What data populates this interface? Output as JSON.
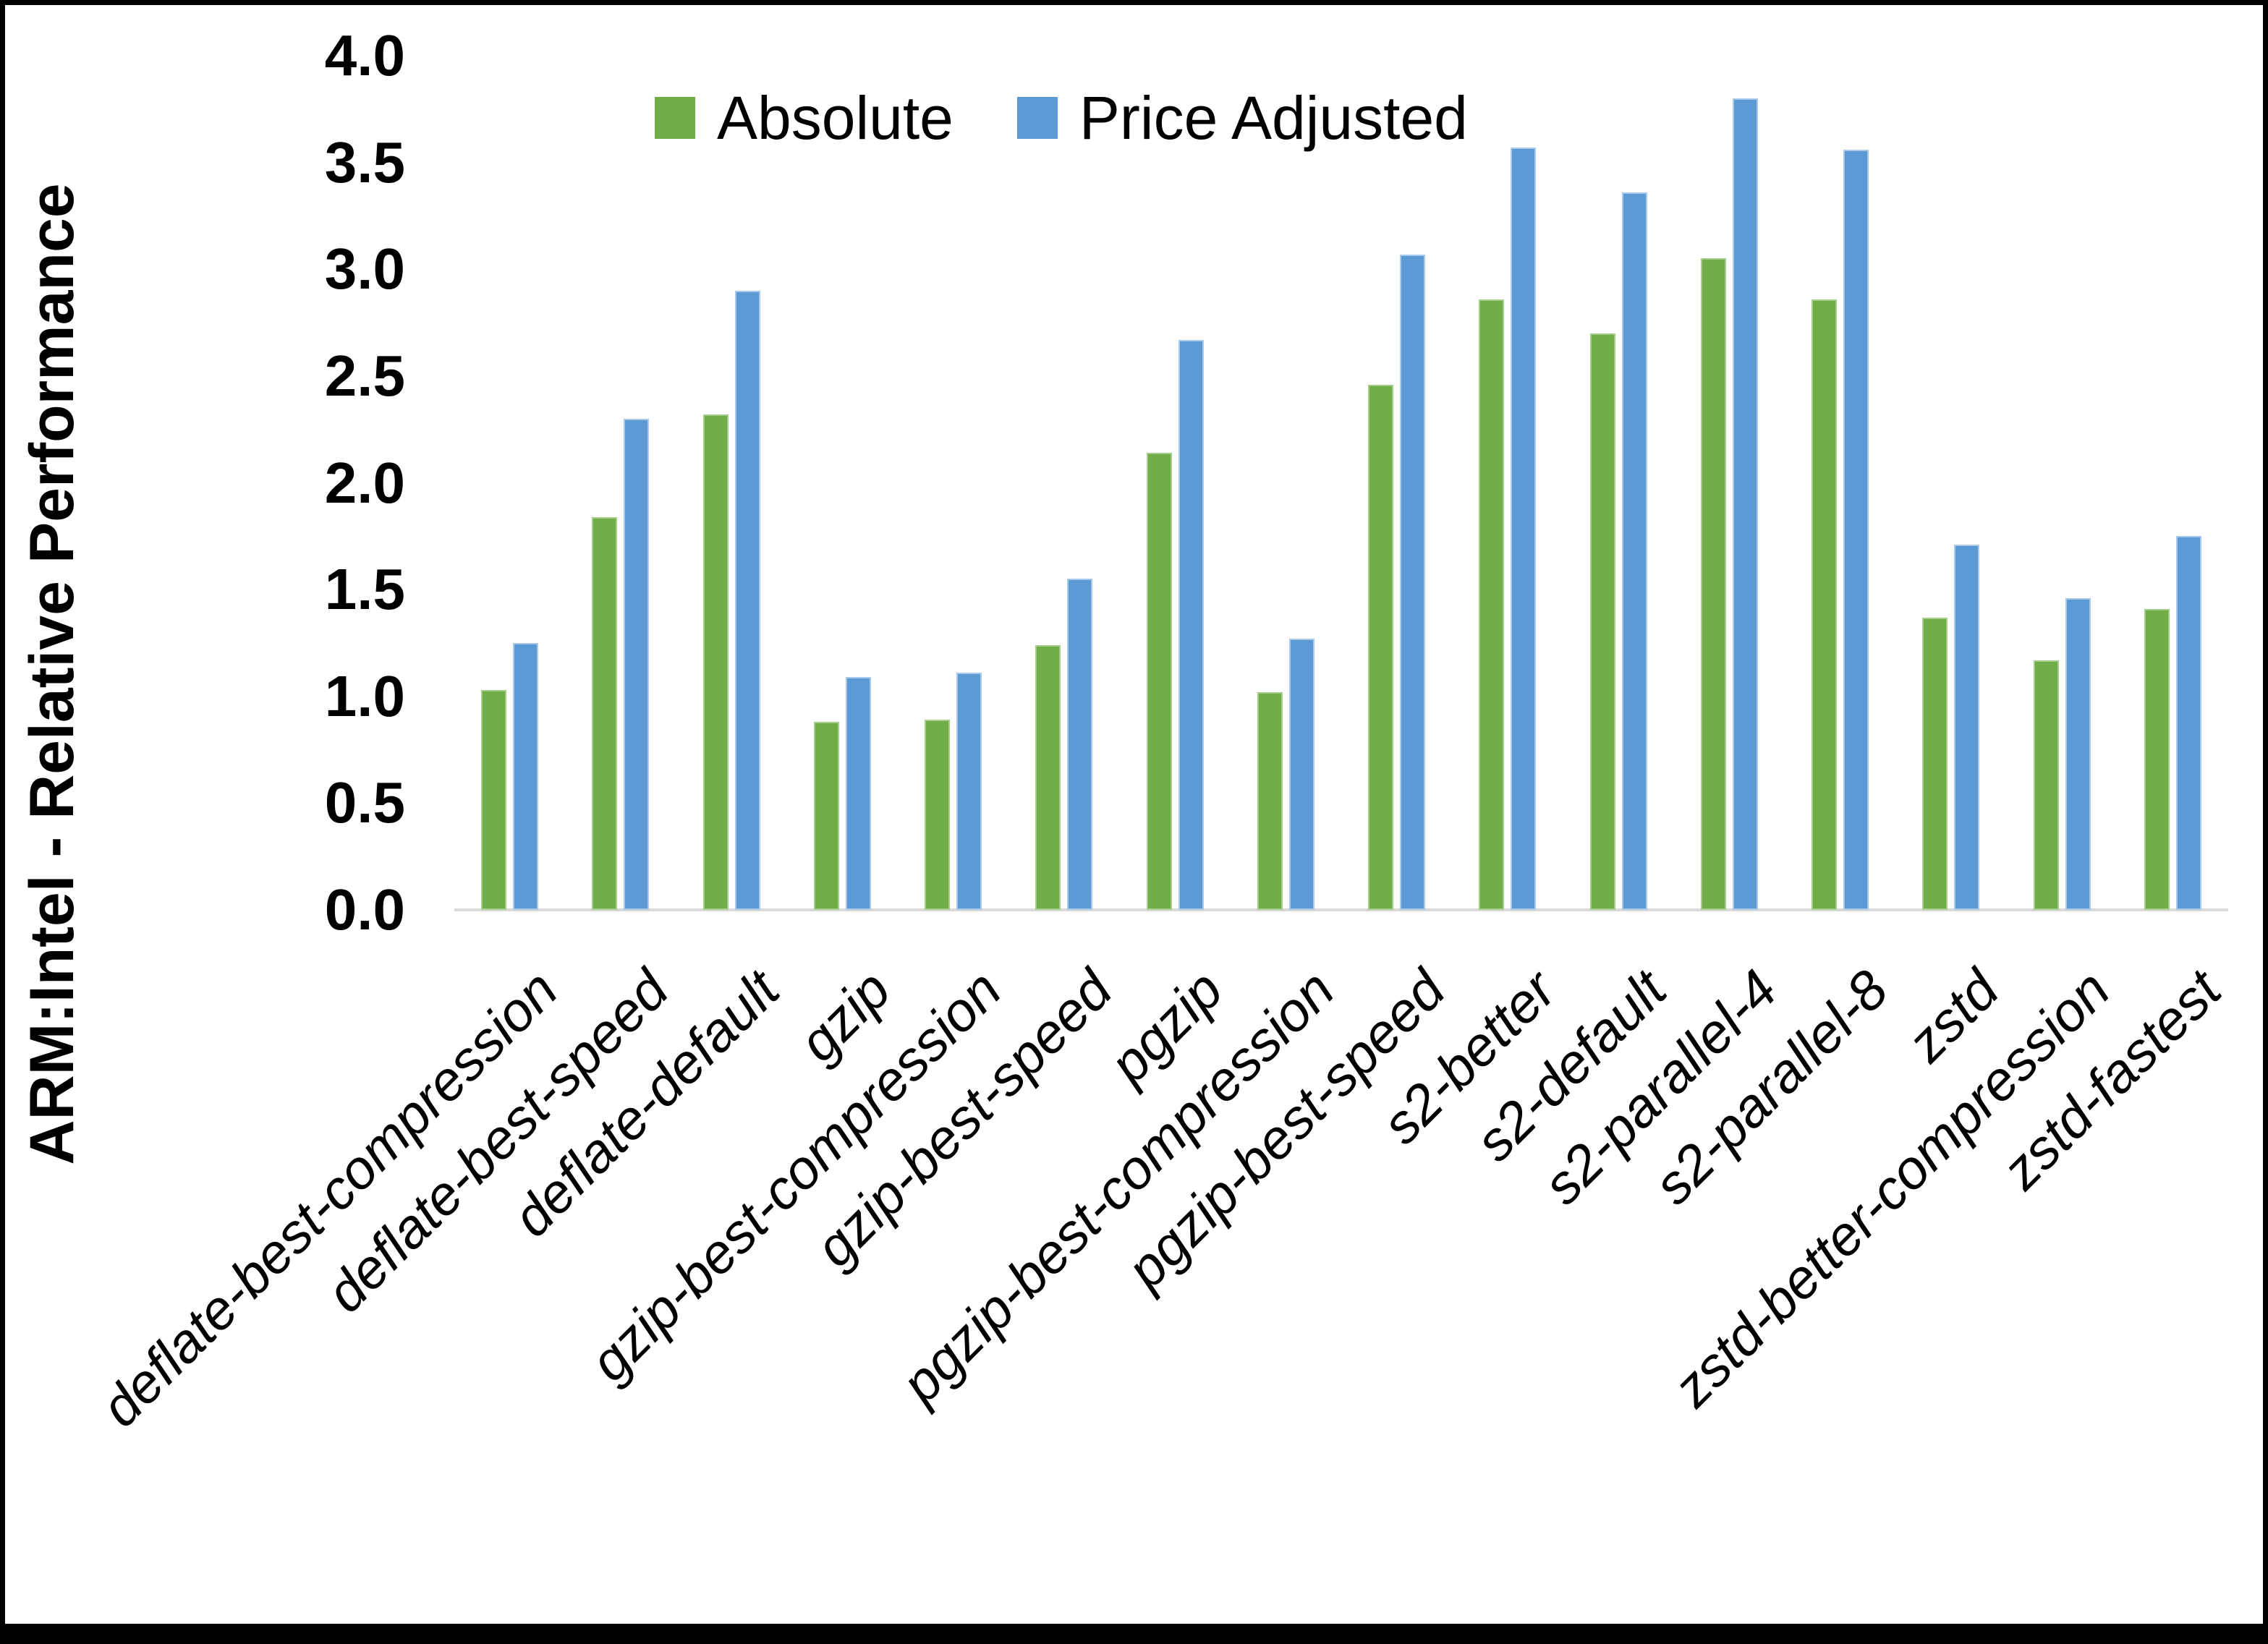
{
  "chart_data": {
    "type": "bar",
    "title": "",
    "categories": [
      "deflate-best-compression",
      "deflate-best-speed",
      "deflate-default",
      "gzip",
      "gzip-best-compression",
      "gzip-best-speed",
      "pgzip",
      "pgzip-best-compression",
      "pgzip-best-speed",
      "s2-better",
      "s2-default",
      "s2-parallel-4",
      "s2-parallel-8",
      "zstd",
      "zstd-better-compression",
      "zstd-fastest"
    ],
    "series": [
      {
        "name": "Absolute",
        "color": "#70AD47",
        "values": [
          1.03,
          1.84,
          2.32,
          0.88,
          0.89,
          1.24,
          2.14,
          1.02,
          2.46,
          2.86,
          2.7,
          3.05,
          2.86,
          1.37,
          1.17,
          1.41
        ]
      },
      {
        "name": "Price Adjusted",
        "color": "#5B9BD5",
        "values": [
          1.25,
          2.3,
          2.9,
          1.09,
          1.11,
          1.55,
          2.67,
          1.27,
          3.07,
          3.57,
          3.36,
          3.8,
          3.56,
          1.71,
          1.46,
          1.75
        ]
      }
    ],
    "xlabel": "",
    "ylabel": "ARM:Intel - Relative Performance",
    "ylim": [
      0.0,
      4.0
    ],
    "ytick_step": 0.5,
    "ytick_labels": [
      "0.0",
      "0.5",
      "1.0",
      "1.5",
      "2.0",
      "2.5",
      "3.0",
      "3.5",
      "4.0"
    ],
    "grid": false,
    "legend_position": "top"
  },
  "legend": {
    "items": [
      {
        "label": "Absolute",
        "color": "#70AD47"
      },
      {
        "label": "Price Adjusted",
        "color": "#5B9BD5"
      }
    ]
  },
  "frame_color": "#000000",
  "axis_line_color": "#d9d9d9"
}
